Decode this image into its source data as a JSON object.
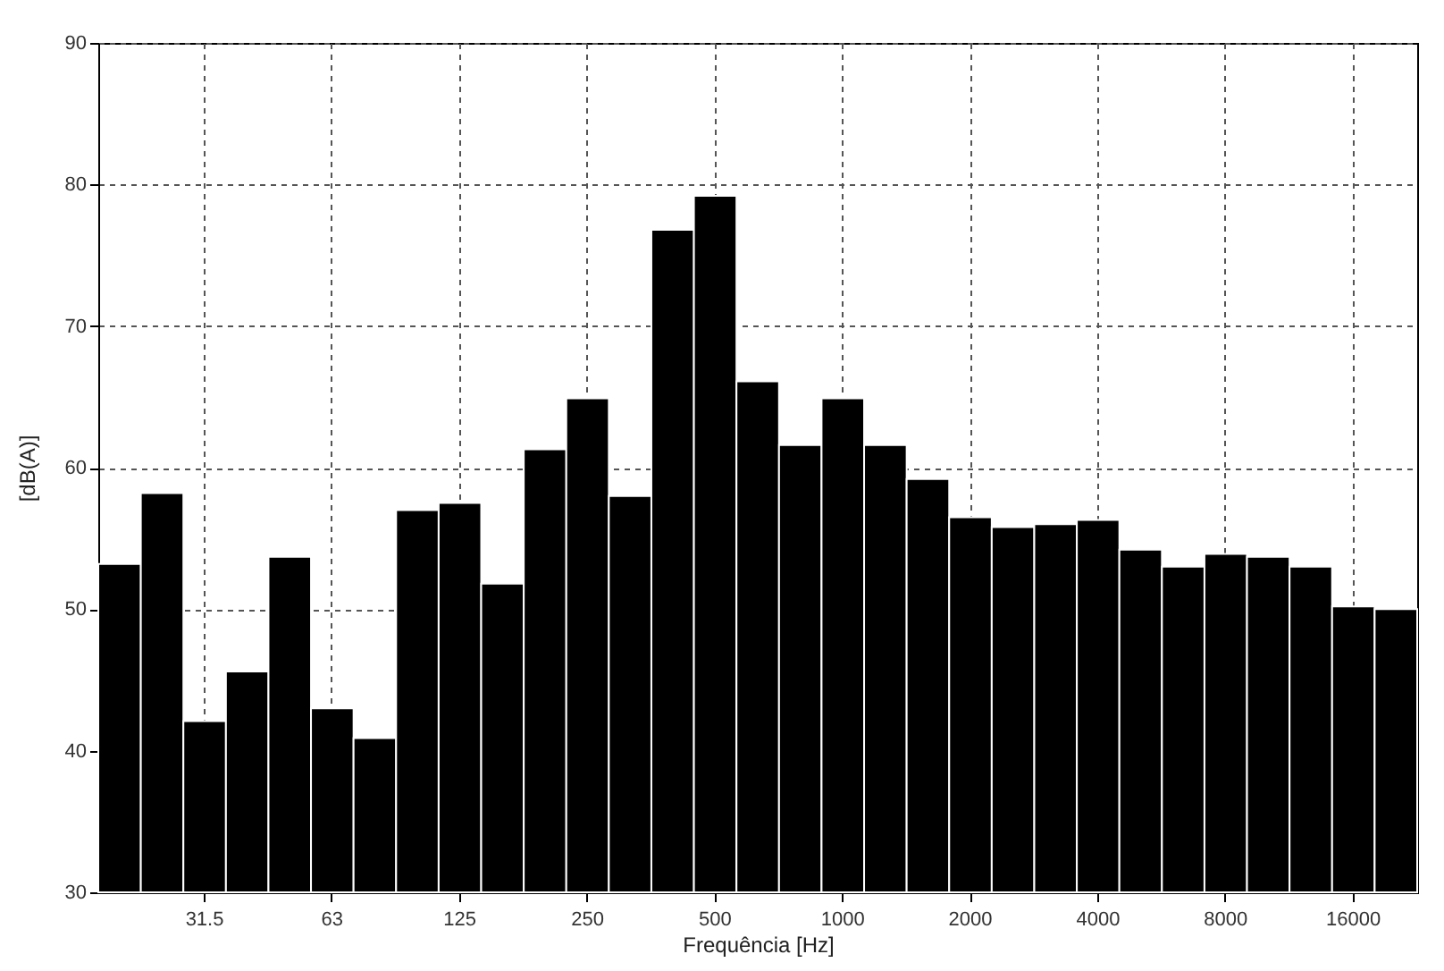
{
  "chart_data": {
    "type": "bar",
    "xlabel": "Frequência [Hz]",
    "ylabel": "[dB(A)]",
    "categories": [
      null,
      null,
      "31.5",
      null,
      null,
      "63",
      null,
      null,
      "125",
      null,
      null,
      "250",
      null,
      null,
      "500",
      null,
      null,
      "1000",
      null,
      null,
      "2000",
      null,
      null,
      "4000",
      null,
      null,
      "8000",
      null,
      null,
      "16000",
      null
    ],
    "values": [
      53.2,
      58.2,
      42.1,
      45.6,
      53.7,
      43.0,
      40.9,
      57.0,
      57.5,
      51.8,
      61.3,
      64.9,
      58.0,
      76.8,
      79.2,
      66.1,
      61.6,
      64.9,
      61.6,
      59.2,
      56.5,
      55.8,
      56.0,
      56.3,
      54.2,
      53.0,
      53.9,
      53.7,
      53.0,
      50.2,
      50.0
    ],
    "color": "#000000",
    "ylim": [
      30,
      90
    ],
    "yticks": [
      30,
      40,
      50,
      60,
      70,
      80,
      90
    ],
    "grid": true
  }
}
